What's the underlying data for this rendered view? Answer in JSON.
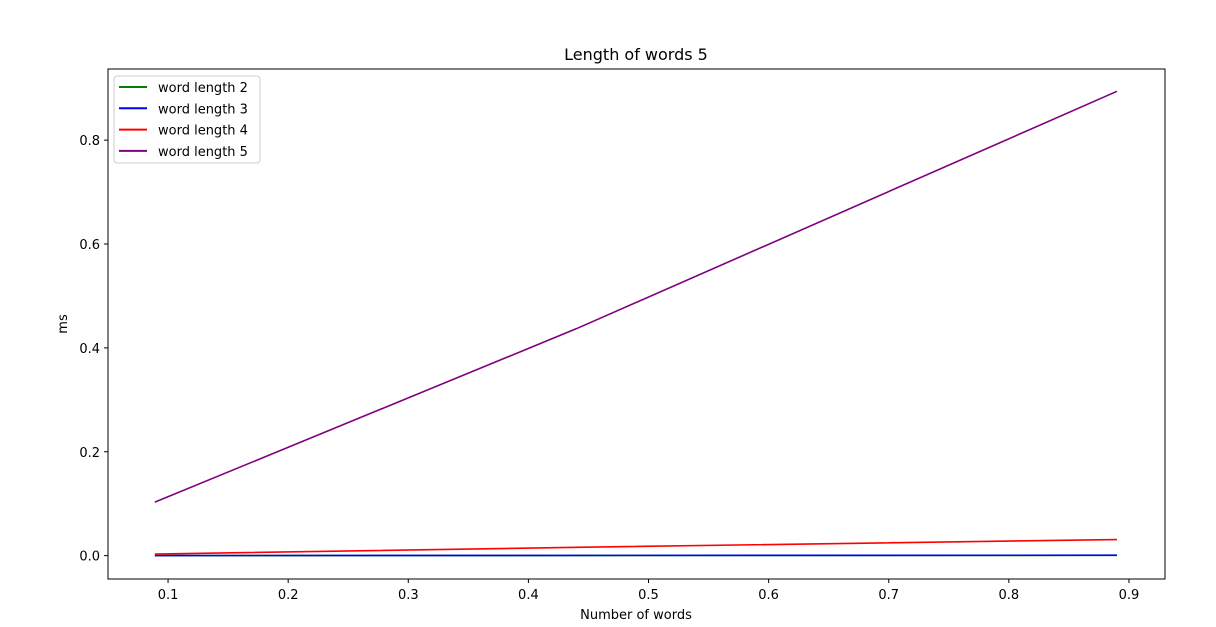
{
  "chart_data": {
    "type": "line",
    "title": "Length of words 5",
    "xlabel": "Number of words",
    "ylabel": "ms",
    "xlim": [
      0.05,
      0.93
    ],
    "ylim": [
      -0.045,
      0.937
    ],
    "xticks": [
      0.1,
      0.2,
      0.3,
      0.4,
      0.5,
      0.6,
      0.7,
      0.8,
      0.9
    ],
    "xtick_labels": [
      "0.1",
      "0.2",
      "0.3",
      "0.4",
      "0.5",
      "0.6",
      "0.7",
      "0.8",
      "0.9"
    ],
    "yticks": [
      0.0,
      0.2,
      0.4,
      0.6,
      0.8
    ],
    "ytick_labels": [
      "0.0",
      "0.2",
      "0.4",
      "0.6",
      "0.8"
    ],
    "grid": false,
    "legend_position": "upper-left",
    "series": [
      {
        "name": "word length 2",
        "color": "#008000",
        "x": [
          0.089,
          0.89
        ],
        "y": [
          0.0,
          0.0005
        ]
      },
      {
        "name": "word length 3",
        "color": "#0000ff",
        "x": [
          0.089,
          0.89
        ],
        "y": [
          0.0002,
          0.0008
        ]
      },
      {
        "name": "word length 4",
        "color": "#ff0000",
        "x": [
          0.089,
          0.44,
          0.89
        ],
        "y": [
          0.003,
          0.016,
          0.031
        ]
      },
      {
        "name": "word length 5",
        "color": "#800080",
        "x": [
          0.089,
          0.44,
          0.89
        ],
        "y": [
          0.103,
          0.437,
          0.894
        ]
      }
    ]
  }
}
